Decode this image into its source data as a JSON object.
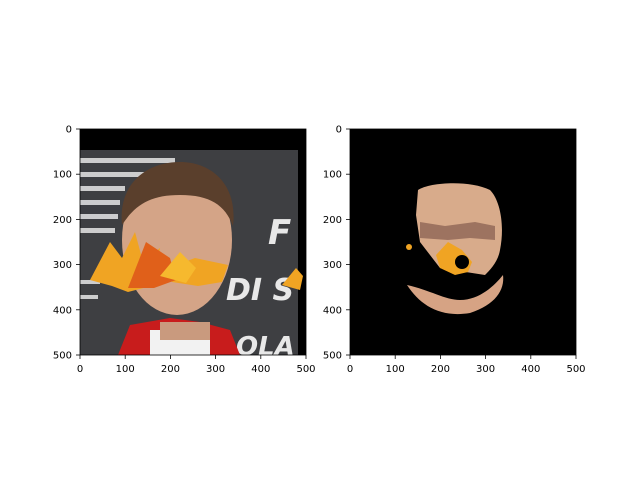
{
  "chart_data": [
    {
      "type": "image",
      "panel": "left",
      "title": "",
      "xlabel": "",
      "ylabel": "",
      "xlim": [
        0,
        500
      ],
      "ylim": [
        500,
        0
      ],
      "xticks": [
        0,
        100,
        200,
        300,
        400,
        500
      ],
      "yticks": [
        0,
        100,
        200,
        300,
        400,
        500
      ],
      "xtick_labels": [
        "0",
        "100",
        "200",
        "300",
        "400",
        "500"
      ],
      "ytick_labels": [
        "0",
        "100",
        "200",
        "300",
        "400",
        "500"
      ],
      "image_description": "face photo with orange autumn leaves overlay",
      "colors": {
        "background": "#000000",
        "backdrop": "#3f3f40",
        "leaf": "#f0a020",
        "skin": "#d6a585",
        "suit": "#cc1b1b"
      }
    },
    {
      "type": "image",
      "panel": "right",
      "title": "",
      "xlabel": "",
      "ylabel": "",
      "xlim": [
        0,
        500
      ],
      "ylim": [
        500,
        0
      ],
      "xticks": [
        0,
        100,
        200,
        300,
        400,
        500
      ],
      "yticks": [
        0,
        100,
        200,
        300,
        400,
        500
      ],
      "xtick_labels": [
        "0",
        "100",
        "200",
        "300",
        "400",
        "500"
      ],
      "ytick_labels": [
        "0",
        "100",
        "200",
        "300",
        "400",
        "500"
      ],
      "image_description": "segmented face region on black background",
      "colors": {
        "background": "#000000",
        "skin": "#d8aa8a",
        "leaf": "#f0a020"
      }
    }
  ]
}
